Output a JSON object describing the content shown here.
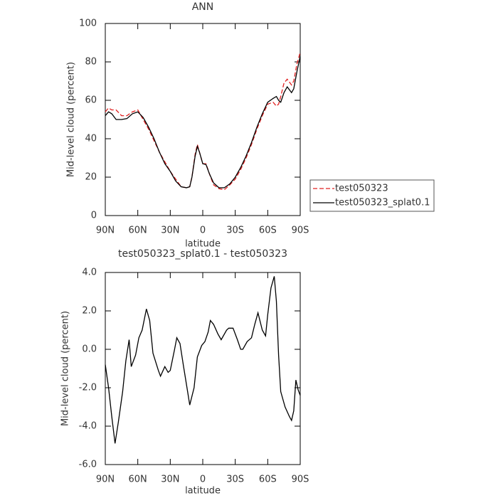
{
  "chart_data": [
    {
      "type": "line",
      "title": "ANN",
      "x_label": "latitude",
      "y_label": "Mid-level cloud (percent)",
      "x": [
        90,
        87,
        84,
        80,
        75,
        70,
        65,
        60,
        55,
        50,
        45,
        40,
        35,
        30,
        25,
        20,
        15,
        12,
        10,
        7,
        5,
        3,
        0,
        -3,
        -6,
        -10,
        -15,
        -20,
        -25,
        -30,
        -35,
        -40,
        -45,
        -50,
        -55,
        -60,
        -65,
        -68,
        -70,
        -72,
        -75,
        -78,
        -82,
        -84,
        -87,
        -90
      ],
      "series": [
        {
          "name": "test050323",
          "color": "#e02020",
          "style": "dashed",
          "values": [
            54,
            56,
            55,
            55,
            52,
            52,
            54,
            55,
            50,
            45,
            39,
            33,
            28,
            23,
            19,
            15,
            14.5,
            15,
            20,
            32,
            37,
            33,
            27,
            27,
            22,
            16,
            14,
            13.5,
            16,
            19,
            24,
            30,
            37,
            45,
            52,
            58,
            59,
            57,
            58,
            62,
            69,
            71,
            68,
            70,
            79,
            85
          ]
        },
        {
          "name": "test050323_splat0.1",
          "color": "#000000",
          "style": "solid",
          "values": [
            52,
            54,
            53,
            50,
            50,
            50.5,
            53,
            54,
            51,
            46,
            40,
            33,
            27,
            23,
            18,
            15,
            14.5,
            15,
            20,
            31,
            36,
            33,
            27,
            26.5,
            22,
            17,
            14.5,
            14.5,
            16.5,
            20,
            25,
            31,
            38,
            46,
            53,
            59,
            61,
            62,
            60,
            59,
            64,
            67,
            64,
            66,
            75,
            83
          ]
        }
      ],
      "xlim": [
        90,
        -90
      ],
      "xticks": [
        {
          "value": 90,
          "label": "90N"
        },
        {
          "value": 60,
          "label": "60N"
        },
        {
          "value": 30,
          "label": "30N"
        },
        0,
        {
          "value": -30,
          "label": "30S"
        },
        {
          "value": -60,
          "label": "60S"
        },
        {
          "value": -90,
          "label": "90S"
        }
      ],
      "ylim": [
        0,
        100
      ],
      "yticks": [
        0,
        20,
        40,
        60,
        80,
        100
      ],
      "legend": "right"
    },
    {
      "type": "line",
      "title": "test050323_splat0.1 - test050323",
      "x_label": "latitude",
      "y_label": "Mid-level cloud (percent)",
      "x": [
        90,
        87,
        84,
        81,
        78,
        74,
        71,
        68,
        66,
        62,
        59,
        56,
        52,
        49,
        46,
        41,
        39,
        35,
        32,
        30,
        26,
        24,
        21,
        18,
        14,
        12,
        8,
        5,
        1,
        -2,
        -5,
        -7,
        -10,
        -14,
        -17,
        -22,
        -24,
        -28,
        -32,
        -35,
        -37,
        -41,
        -45,
        -48,
        -51,
        -55,
        -58,
        -60,
        -63,
        -66,
        -68,
        -70,
        -72,
        -76,
        -80,
        -82,
        -84,
        -86,
        -88,
        -90
      ],
      "values": [
        -0.8,
        -2,
        -3.5,
        -4.9,
        -3.8,
        -2.2,
        -0.6,
        0.5,
        -0.9,
        -0.3,
        0.6,
        1.0,
        2.1,
        1.5,
        -0.2,
        -1.1,
        -1.4,
        -0.9,
        -1.2,
        -1.1,
        0,
        0.6,
        0.3,
        -0.8,
        -2.2,
        -2.9,
        -2.0,
        -0.4,
        0.2,
        0.4,
        0.9,
        1.5,
        1.3,
        0.8,
        0.5,
        1.0,
        1.1,
        1.1,
        0.5,
        0,
        0,
        0.4,
        0.6,
        1.3,
        1.9,
        1.0,
        0.7,
        1.8,
        3.2,
        3.8,
        2.5,
        -0.3,
        -2.2,
        -3.0,
        -3.5,
        -3.7,
        -3.2,
        -1.6,
        -2.1,
        -2.4
      ],
      "color": "#000000",
      "xlim": [
        90,
        -90
      ],
      "xticks": [
        {
          "value": 90,
          "label": "90N"
        },
        {
          "value": 60,
          "label": "60N"
        },
        {
          "value": 30,
          "label": "30N"
        },
        0,
        {
          "value": -30,
          "label": "30S"
        },
        {
          "value": -60,
          "label": "60S"
        },
        {
          "value": -90,
          "label": "90S"
        }
      ],
      "ylim": [
        -6,
        4
      ],
      "yticks": [
        {
          "value": -6,
          "label": "-6.0"
        },
        {
          "value": -4,
          "label": "-4.0"
        },
        {
          "value": -2,
          "label": "-2.0"
        },
        {
          "value": 0,
          "label": "0.0"
        },
        {
          "value": 2,
          "label": "2.0"
        },
        {
          "value": 4,
          "label": "4.0"
        }
      ]
    }
  ]
}
